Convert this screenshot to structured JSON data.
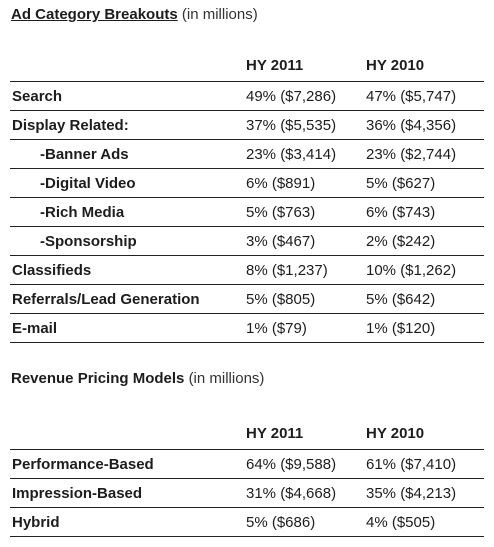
{
  "ad_category": {
    "title": "Ad Category Breakouts",
    "subtitle": "(in millions)",
    "headers": [
      "HY 2011",
      "HY 2010"
    ],
    "rows": [
      {
        "label": "Search",
        "hy2011": "49% ($7,286)",
        "hy2010": "47% ($5,747)",
        "indent": false
      },
      {
        "label": "Display Related:",
        "hy2011": "37% ($5,535)",
        "hy2010": "36% ($4,356)",
        "indent": false
      },
      {
        "label": "-Banner Ads",
        "hy2011": "23% ($3,414)",
        "hy2010": "23% ($2,744)",
        "indent": true
      },
      {
        "label": "-Digital Video",
        "hy2011": "6% ($891)",
        "hy2010": "5% ($627)",
        "indent": true
      },
      {
        "label": "-Rich Media",
        "hy2011": "5% ($763)",
        "hy2010": "6% ($743)",
        "indent": true
      },
      {
        "label": "-Sponsorship",
        "hy2011": "3% ($467)",
        "hy2010": "2% ($242)",
        "indent": true
      },
      {
        "label": "Classifieds",
        "hy2011": "8% ($1,237)",
        "hy2010": "10% ($1,262)",
        "indent": false
      },
      {
        "label": "Referrals/Lead Generation",
        "hy2011": "5% ($805)",
        "hy2010": "5% ($642)",
        "indent": false
      },
      {
        "label": "E-mail",
        "hy2011": "1% ($79)",
        "hy2010": "1% ($120)",
        "indent": false
      }
    ]
  },
  "revenue_pricing": {
    "title": "Revenue Pricing Models",
    "subtitle": "(in millions)",
    "headers": [
      "HY 2011",
      "HY 2010"
    ],
    "rows": [
      {
        "label": "Performance-Based",
        "hy2011": "64% ($9,588)",
        "hy2010": "61% ($7,410)",
        "indent": false
      },
      {
        "label": "Impression-Based",
        "hy2011": "31% ($4,668)",
        "hy2010": "35% ($4,213)",
        "indent": false
      },
      {
        "label": "Hybrid",
        "hy2011": "5% ($686)",
        "hy2010": "4% ($505)",
        "indent": false
      }
    ]
  }
}
